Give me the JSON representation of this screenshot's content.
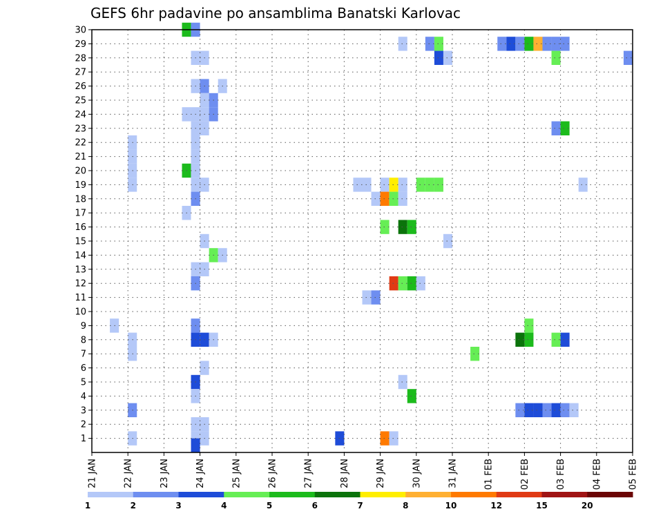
{
  "chart_data": {
    "type": "heatmap",
    "title": "GEFS 6hr padavine po ansamblima Banatski Karlovac",
    "xlabel": "",
    "ylabel": "",
    "x_ticks": [
      "21 JAN",
      "22 JAN",
      "23 JAN",
      "24 JAN",
      "25 JAN",
      "26 JAN",
      "27 JAN",
      "28 JAN",
      "29 JAN",
      "30 JAN",
      "31 JAN",
      "01 FEB",
      "02 FEB",
      "03 FEB",
      "04 FEB",
      "05 FEB"
    ],
    "y_ticks": [
      1,
      2,
      3,
      4,
      5,
      6,
      7,
      8,
      9,
      10,
      11,
      12,
      13,
      14,
      15,
      16,
      17,
      18,
      19,
      20,
      21,
      22,
      23,
      24,
      25,
      26,
      27,
      28,
      29,
      30
    ],
    "x_range_days": [
      0,
      15
    ],
    "y_range": [
      0,
      30
    ],
    "step_days": 0.25,
    "grid": true,
    "colorbar": {
      "labels": [
        "1",
        "2",
        "3",
        "4",
        "5",
        "6",
        "7",
        "8",
        "10",
        "12",
        "15",
        "20"
      ],
      "colors": [
        "#b4c8f8",
        "#6e8ef0",
        "#1e4cd8",
        "#66ee55",
        "#1cbb1c",
        "#0b730b",
        "#ffee00",
        "#ffb032",
        "#ff7a00",
        "#e03a14",
        "#a01414",
        "#6b0505"
      ]
    },
    "cells": [
      {
        "x": 2.5,
        "y": 30,
        "c": 4
      },
      {
        "x": 2.75,
        "y": 30,
        "c": 1
      },
      {
        "x": 8.5,
        "y": 29,
        "c": 0
      },
      {
        "x": 9.25,
        "y": 29,
        "c": 1
      },
      {
        "x": 9.5,
        "y": 29,
        "c": 3
      },
      {
        "x": 11.25,
        "y": 29,
        "c": 1
      },
      {
        "x": 11.5,
        "y": 29,
        "c": 2
      },
      {
        "x": 11.75,
        "y": 29,
        "c": 1
      },
      {
        "x": 12.0,
        "y": 29,
        "c": 4
      },
      {
        "x": 12.25,
        "y": 29,
        "c": 7
      },
      {
        "x": 12.5,
        "y": 29,
        "c": 1
      },
      {
        "x": 12.75,
        "y": 29,
        "c": 1
      },
      {
        "x": 13.0,
        "y": 29,
        "c": 1
      },
      {
        "x": 2.75,
        "y": 28,
        "c": 0
      },
      {
        "x": 3.0,
        "y": 28,
        "c": 0
      },
      {
        "x": 9.5,
        "y": 28,
        "c": 2
      },
      {
        "x": 9.75,
        "y": 28,
        "c": 0
      },
      {
        "x": 12.75,
        "y": 28,
        "c": 3
      },
      {
        "x": 14.75,
        "y": 28,
        "c": 1
      },
      {
        "x": 2.75,
        "y": 26,
        "c": 0
      },
      {
        "x": 3.0,
        "y": 26,
        "c": 1
      },
      {
        "x": 3.5,
        "y": 26,
        "c": 0
      },
      {
        "x": 3.0,
        "y": 25,
        "c": 0
      },
      {
        "x": 3.25,
        "y": 25,
        "c": 1
      },
      {
        "x": 2.5,
        "y": 24,
        "c": 0
      },
      {
        "x": 2.75,
        "y": 24,
        "c": 0
      },
      {
        "x": 3.0,
        "y": 24,
        "c": 0
      },
      {
        "x": 3.25,
        "y": 24,
        "c": 1
      },
      {
        "x": 2.75,
        "y": 23,
        "c": 0
      },
      {
        "x": 3.0,
        "y": 23,
        "c": 0
      },
      {
        "x": 12.75,
        "y": 23,
        "c": 1
      },
      {
        "x": 13.0,
        "y": 23,
        "c": 4
      },
      {
        "x": 1.0,
        "y": 22,
        "c": 0
      },
      {
        "x": 2.75,
        "y": 22,
        "c": 0
      },
      {
        "x": 1.0,
        "y": 21,
        "c": 0
      },
      {
        "x": 2.75,
        "y": 21,
        "c": 0
      },
      {
        "x": 1.0,
        "y": 20,
        "c": 0
      },
      {
        "x": 2.5,
        "y": 20,
        "c": 4
      },
      {
        "x": 2.75,
        "y": 20,
        "c": 0
      },
      {
        "x": 1.0,
        "y": 19,
        "c": 0
      },
      {
        "x": 2.75,
        "y": 19,
        "c": 0
      },
      {
        "x": 3.0,
        "y": 19,
        "c": 0
      },
      {
        "x": 7.25,
        "y": 19,
        "c": 0
      },
      {
        "x": 7.5,
        "y": 19,
        "c": 0
      },
      {
        "x": 8.0,
        "y": 19,
        "c": 0
      },
      {
        "x": 8.25,
        "y": 19,
        "c": 6
      },
      {
        "x": 8.5,
        "y": 19,
        "c": 0
      },
      {
        "x": 9.0,
        "y": 19,
        "c": 3
      },
      {
        "x": 9.25,
        "y": 19,
        "c": 3
      },
      {
        "x": 9.5,
        "y": 19,
        "c": 3
      },
      {
        "x": 13.5,
        "y": 19,
        "c": 0
      },
      {
        "x": 2.75,
        "y": 18,
        "c": 1
      },
      {
        "x": 7.75,
        "y": 18,
        "c": 0
      },
      {
        "x": 8.0,
        "y": 18,
        "c": 8
      },
      {
        "x": 8.25,
        "y": 18,
        "c": 3
      },
      {
        "x": 8.5,
        "y": 18,
        "c": 0
      },
      {
        "x": 2.5,
        "y": 17,
        "c": 0
      },
      {
        "x": 8.0,
        "y": 16,
        "c": 3
      },
      {
        "x": 8.5,
        "y": 16,
        "c": 5
      },
      {
        "x": 8.75,
        "y": 16,
        "c": 4
      },
      {
        "x": 3.0,
        "y": 15,
        "c": 0
      },
      {
        "x": 9.75,
        "y": 15,
        "c": 0
      },
      {
        "x": 3.25,
        "y": 14,
        "c": 3
      },
      {
        "x": 3.5,
        "y": 14,
        "c": 0
      },
      {
        "x": 2.75,
        "y": 13,
        "c": 0
      },
      {
        "x": 3.0,
        "y": 13,
        "c": 0
      },
      {
        "x": 2.75,
        "y": 12,
        "c": 1
      },
      {
        "x": 8.25,
        "y": 12,
        "c": 9
      },
      {
        "x": 8.5,
        "y": 12,
        "c": 3
      },
      {
        "x": 8.75,
        "y": 12,
        "c": 4
      },
      {
        "x": 9.0,
        "y": 12,
        "c": 0
      },
      {
        "x": 7.5,
        "y": 11,
        "c": 0
      },
      {
        "x": 7.75,
        "y": 11,
        "c": 1
      },
      {
        "x": 0.5,
        "y": 9,
        "c": 0
      },
      {
        "x": 2.75,
        "y": 9,
        "c": 1
      },
      {
        "x": 12.0,
        "y": 9,
        "c": 3
      },
      {
        "x": 1.0,
        "y": 8,
        "c": 0
      },
      {
        "x": 2.75,
        "y": 8,
        "c": 2
      },
      {
        "x": 3.0,
        "y": 8,
        "c": 2
      },
      {
        "x": 3.25,
        "y": 8,
        "c": 0
      },
      {
        "x": 11.75,
        "y": 8,
        "c": 5
      },
      {
        "x": 12.0,
        "y": 8,
        "c": 4
      },
      {
        "x": 12.75,
        "y": 8,
        "c": 3
      },
      {
        "x": 13.0,
        "y": 8,
        "c": 2
      },
      {
        "x": 1.0,
        "y": 7,
        "c": 0
      },
      {
        "x": 10.5,
        "y": 7,
        "c": 3
      },
      {
        "x": 3.0,
        "y": 6,
        "c": 0
      },
      {
        "x": 2.75,
        "y": 5,
        "c": 2
      },
      {
        "x": 8.5,
        "y": 5,
        "c": 0
      },
      {
        "x": 2.75,
        "y": 4,
        "c": 0
      },
      {
        "x": 8.75,
        "y": 4,
        "c": 4
      },
      {
        "x": 1.0,
        "y": 3,
        "c": 1
      },
      {
        "x": 11.75,
        "y": 3,
        "c": 1
      },
      {
        "x": 12.0,
        "y": 3,
        "c": 2
      },
      {
        "x": 12.25,
        "y": 3,
        "c": 2
      },
      {
        "x": 12.5,
        "y": 3,
        "c": 1
      },
      {
        "x": 12.75,
        "y": 3,
        "c": 2
      },
      {
        "x": 13.0,
        "y": 3,
        "c": 1
      },
      {
        "x": 13.25,
        "y": 3,
        "c": 0
      },
      {
        "x": 2.75,
        "y": 2,
        "c": 0
      },
      {
        "x": 3.0,
        "y": 2,
        "c": 0
      },
      {
        "x": 2.75,
        "y": 1,
        "c": 0
      },
      {
        "x": 3.0,
        "y": 1,
        "c": 0
      },
      {
        "x": 1.0,
        "y": 1,
        "c": 0
      },
      {
        "x": 2.75,
        "y": 0.5,
        "c": 2
      },
      {
        "x": 6.75,
        "y": 1,
        "c": 2
      },
      {
        "x": 8.0,
        "y": 1,
        "c": 8
      },
      {
        "x": 8.25,
        "y": 1,
        "c": 0
      }
    ]
  }
}
